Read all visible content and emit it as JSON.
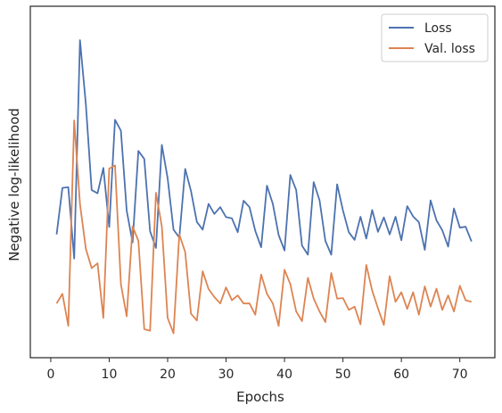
{
  "chart_data": {
    "type": "line",
    "xlabel": "Epochs",
    "ylabel": "Negative log-likelihood",
    "xlim": [
      -3.5,
      76
    ],
    "ylim": [
      0,
      1
    ],
    "x_ticks": [
      0,
      10,
      20,
      30,
      40,
      50,
      60,
      70
    ],
    "y_tick_labels_shown": false,
    "grid": false,
    "legend_position": "top-right",
    "series": [
      {
        "name": "Loss",
        "color": "#4c72b0",
        "x": [
          1,
          2,
          3,
          4,
          5,
          6,
          7,
          8,
          9,
          10,
          11,
          12,
          13,
          14,
          15,
          16,
          17,
          18,
          19,
          20,
          21,
          22,
          23,
          24,
          25,
          26,
          27,
          28,
          29,
          30,
          31,
          32,
          33,
          34,
          35,
          36,
          37,
          38,
          39,
          40,
          41,
          42,
          43,
          44,
          45,
          46,
          47,
          48,
          49,
          50,
          51,
          52,
          53,
          54,
          55,
          56,
          57,
          58,
          59,
          60,
          61,
          62,
          63,
          64,
          65,
          66,
          67,
          68,
          69,
          70,
          71,
          72
        ],
        "y": [
          0.345,
          0.49,
          0.492,
          0.27,
          0.95,
          0.75,
          0.483,
          0.473,
          0.552,
          0.368,
          0.702,
          0.668,
          0.419,
          0.32,
          0.605,
          0.58,
          0.355,
          0.303,
          0.624,
          0.52,
          0.36,
          0.335,
          0.549,
          0.48,
          0.384,
          0.36,
          0.44,
          0.409,
          0.43,
          0.399,
          0.395,
          0.352,
          0.45,
          0.43,
          0.356,
          0.305,
          0.497,
          0.44,
          0.343,
          0.295,
          0.53,
          0.483,
          0.31,
          0.282,
          0.508,
          0.451,
          0.325,
          0.282,
          0.501,
          0.42,
          0.352,
          0.328,
          0.4,
          0.332,
          0.421,
          0.353,
          0.398,
          0.345,
          0.4,
          0.327,
          0.433,
          0.401,
          0.383,
          0.297,
          0.451,
          0.389,
          0.358,
          0.307,
          0.426,
          0.366,
          0.369,
          0.323
        ]
      },
      {
        "name": "Val. loss",
        "color": "#dd8452",
        "x": [
          1,
          2,
          3,
          4,
          5,
          6,
          7,
          8,
          9,
          10,
          11,
          12,
          13,
          14,
          15,
          16,
          17,
          18,
          19,
          20,
          21,
          22,
          23,
          24,
          25,
          26,
          27,
          28,
          29,
          30,
          31,
          32,
          33,
          34,
          35,
          36,
          37,
          38,
          39,
          40,
          41,
          42,
          43,
          44,
          45,
          46,
          47,
          48,
          49,
          50,
          51,
          52,
          53,
          54,
          55,
          56,
          57,
          58,
          59,
          60,
          61,
          62,
          63,
          64,
          65,
          66,
          67,
          68,
          69,
          70,
          71,
          72
        ],
        "y": [
          0.13,
          0.16,
          0.06,
          0.7,
          0.44,
          0.3,
          0.24,
          0.255,
          0.085,
          0.55,
          0.56,
          0.19,
          0.09,
          0.37,
          0.325,
          0.05,
          0.045,
          0.475,
          0.37,
          0.085,
          0.037,
          0.345,
          0.29,
          0.098,
          0.077,
          0.23,
          0.175,
          0.15,
          0.13,
          0.18,
          0.14,
          0.155,
          0.13,
          0.13,
          0.095,
          0.22,
          0.16,
          0.13,
          0.06,
          0.235,
          0.19,
          0.105,
          0.075,
          0.21,
          0.145,
          0.105,
          0.072,
          0.225,
          0.145,
          0.147,
          0.11,
          0.12,
          0.065,
          0.25,
          0.17,
          0.115,
          0.063,
          0.215,
          0.135,
          0.165,
          0.113,
          0.165,
          0.095,
          0.183,
          0.12,
          0.176,
          0.11,
          0.155,
          0.105,
          0.185,
          0.14,
          0.135
        ]
      }
    ]
  }
}
